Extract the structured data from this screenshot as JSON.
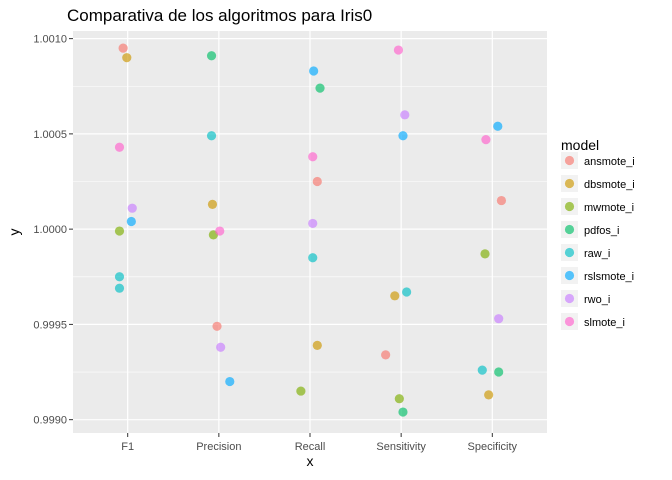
{
  "chart_data": {
    "type": "scatter",
    "title": "Comparativa de los algoritmos para Iris0",
    "xlabel": "x",
    "ylabel": "y",
    "categories": [
      "F1",
      "Precision",
      "Recall",
      "Sensitivity",
      "Specificity"
    ],
    "y_ticks": [
      "0.9990",
      "0.9995",
      "1.0000",
      "1.0005",
      "1.0010"
    ],
    "ylim": [
      0.99893,
      1.00104
    ],
    "grid": true,
    "legend_title": "model",
    "legend_position": "right",
    "series": [
      {
        "name": "ansmote_i",
        "color": "#F8766D",
        "points": [
          {
            "x": "F1",
            "j": -0.05,
            "y": 1.00095
          },
          {
            "x": "Precision",
            "j": -0.02,
            "y": 0.99949
          },
          {
            "x": "Recall",
            "j": 0.08,
            "y": 1.00025
          },
          {
            "x": "Sensitivity",
            "j": -0.17,
            "y": 0.99934
          },
          {
            "x": "Specificity",
            "j": 0.1,
            "y": 1.00015
          }
        ]
      },
      {
        "name": "dbsmote_i",
        "color": "#CD9600",
        "points": [
          {
            "x": "F1",
            "j": -0.01,
            "y": 1.0009
          },
          {
            "x": "Precision",
            "j": -0.07,
            "y": 1.00013
          },
          {
            "x": "Recall",
            "j": 0.08,
            "y": 0.99939
          },
          {
            "x": "Sensitivity",
            "j": -0.07,
            "y": 0.99965
          },
          {
            "x": "Specificity",
            "j": -0.04,
            "y": 0.99913
          }
        ]
      },
      {
        "name": "mwmote_i",
        "color": "#7CAE00",
        "points": [
          {
            "x": "F1",
            "j": -0.09,
            "y": 0.99999
          },
          {
            "x": "Precision",
            "j": -0.06,
            "y": 0.99997
          },
          {
            "x": "Recall",
            "j": -0.1,
            "y": 0.99915
          },
          {
            "x": "Sensitivity",
            "j": -0.02,
            "y": 0.99911
          },
          {
            "x": "Specificity",
            "j": -0.08,
            "y": 0.99987
          }
        ]
      },
      {
        "name": "pdfos_i",
        "color": "#00BE67",
        "points": [
          {
            "x": "Precision",
            "j": -0.08,
            "y": 1.00091
          },
          {
            "x": "Recall",
            "j": 0.11,
            "y": 1.00074
          },
          {
            "x": "Sensitivity",
            "j": 0.02,
            "y": 0.99904
          },
          {
            "x": "Specificity",
            "j": 0.07,
            "y": 0.99925
          }
        ]
      },
      {
        "name": "raw_i",
        "color": "#00BFC4",
        "points": [
          {
            "x": "F1",
            "j": -0.09,
            "y": 0.99975
          },
          {
            "x": "F1",
            "j": -0.09,
            "y": 0.99969
          },
          {
            "x": "Precision",
            "j": -0.08,
            "y": 1.00049
          },
          {
            "x": "Recall",
            "j": 0.03,
            "y": 0.99985
          },
          {
            "x": "Sensitivity",
            "j": 0.06,
            "y": 0.99967
          },
          {
            "x": "Specificity",
            "j": -0.11,
            "y": 0.99926
          }
        ]
      },
      {
        "name": "rslsmote_i",
        "color": "#00A9FF",
        "points": [
          {
            "x": "F1",
            "j": 0.04,
            "y": 1.00004
          },
          {
            "x": "Precision",
            "j": 0.12,
            "y": 0.9992
          },
          {
            "x": "Recall",
            "j": 0.04,
            "y": 1.00083
          },
          {
            "x": "Sensitivity",
            "j": 0.02,
            "y": 1.00049
          },
          {
            "x": "Specificity",
            "j": 0.06,
            "y": 1.00054
          }
        ]
      },
      {
        "name": "rwo_i",
        "color": "#C77CFF",
        "points": [
          {
            "x": "F1",
            "j": 0.05,
            "y": 1.00011
          },
          {
            "x": "Precision",
            "j": 0.02,
            "y": 0.99938
          },
          {
            "x": "Recall",
            "j": 0.03,
            "y": 1.00003
          },
          {
            "x": "Sensitivity",
            "j": 0.04,
            "y": 1.0006
          },
          {
            "x": "Specificity",
            "j": 0.07,
            "y": 0.99953
          }
        ]
      },
      {
        "name": "slmote_i",
        "color": "#FF61CC",
        "points": [
          {
            "x": "F1",
            "j": -0.09,
            "y": 1.00043
          },
          {
            "x": "Precision",
            "j": 0.01,
            "y": 0.99999
          },
          {
            "x": "Recall",
            "j": 0.03,
            "y": 1.00038
          },
          {
            "x": "Sensitivity",
            "j": -0.03,
            "y": 1.00094
          },
          {
            "x": "Specificity",
            "j": -0.07,
            "y": 1.00047
          }
        ]
      }
    ]
  }
}
